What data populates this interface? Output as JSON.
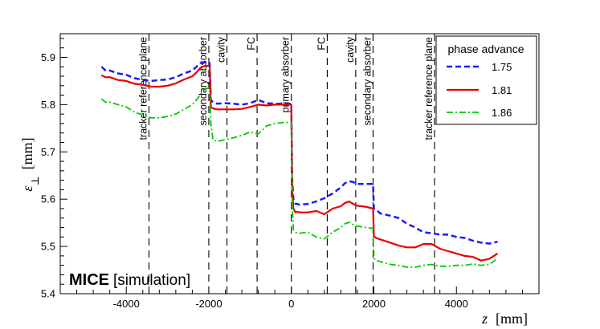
{
  "chart_data": {
    "type": "line",
    "xlabel_symbol": "z",
    "xlabel_unit": "[mm]",
    "ylabel_symbol": "ε",
    "ylabel_subscript": "⊥",
    "ylabel_unit": "[mm]",
    "xlim": [
      -5600,
      6000
    ],
    "ylim": [
      5.4,
      5.95
    ],
    "x_ticks": [
      -4000,
      -2000,
      0,
      2000,
      4000
    ],
    "x_tick_labels": [
      "-4000",
      "-2000",
      "0",
      "2000",
      "4000"
    ],
    "y_ticks": [
      5.4,
      5.5,
      5.6,
      5.7,
      5.8,
      5.9
    ],
    "y_tick_labels": [
      "5.4",
      "5.5",
      "5.6",
      "5.7",
      "5.8",
      "5.9"
    ],
    "watermark_bold": "MICE",
    "watermark_text": "[simulation]",
    "legend": {
      "title": "phase advance",
      "placement": "top-right"
    },
    "regions": [
      {
        "z": -3450,
        "label": "tracker reference plane"
      },
      {
        "z": -2000,
        "label": "secondary absorber"
      },
      {
        "z": -1560,
        "label": "cavity"
      },
      {
        "z": -830,
        "label": "FC"
      },
      {
        "z": 0,
        "label": "primary absorber"
      },
      {
        "z": 870,
        "label": "FC"
      },
      {
        "z": 1560,
        "label": "cavity"
      },
      {
        "z": 1980,
        "label": "secondary absorber"
      },
      {
        "z": 3470,
        "label": "tracker reference plane"
      }
    ],
    "series": [
      {
        "name": "1.75",
        "color": "#1a1aff",
        "style": "dashed",
        "x": [
          -4600,
          -4500,
          -4400,
          -4200,
          -4000,
          -3800,
          -3600,
          -3400,
          -3200,
          -3000,
          -2800,
          -2600,
          -2400,
          -2300,
          -2200,
          -2100,
          -2000,
          -1980,
          -1950,
          -1900,
          -1800,
          -1600,
          -1400,
          -1200,
          -1000,
          -800,
          -600,
          -400,
          -200,
          0,
          20,
          50,
          100,
          150,
          200,
          400,
          600,
          800,
          1000,
          1200,
          1300,
          1400,
          1500,
          1600,
          1800,
          1980,
          2000,
          2050,
          2150,
          2400,
          2600,
          2800,
          3000,
          3200,
          3400,
          3600,
          3800,
          4000,
          4200,
          4400,
          4600,
          4800,
          5000
        ],
        "y": [
          5.88,
          5.872,
          5.872,
          5.866,
          5.863,
          5.856,
          5.852,
          5.85,
          5.852,
          5.853,
          5.858,
          5.866,
          5.872,
          5.88,
          5.888,
          5.889,
          5.889,
          5.887,
          5.81,
          5.805,
          5.802,
          5.803,
          5.802,
          5.8,
          5.803,
          5.81,
          5.803,
          5.802,
          5.802,
          5.802,
          5.64,
          5.6,
          5.59,
          5.59,
          5.588,
          5.59,
          5.595,
          5.602,
          5.612,
          5.625,
          5.634,
          5.638,
          5.636,
          5.632,
          5.632,
          5.632,
          5.58,
          5.578,
          5.57,
          5.565,
          5.56,
          5.548,
          5.54,
          5.53,
          5.528,
          5.525,
          5.525,
          5.52,
          5.518,
          5.512,
          5.508,
          5.506,
          5.51
        ]
      },
      {
        "name": "1.81",
        "color": "#e80000",
        "style": "solid",
        "x": [
          -4600,
          -4500,
          -4400,
          -4200,
          -4000,
          -3800,
          -3600,
          -3400,
          -3200,
          -3000,
          -2800,
          -2600,
          -2400,
          -2300,
          -2200,
          -2100,
          -2000,
          -1980,
          -1950,
          -1900,
          -1800,
          -1600,
          -1400,
          -1200,
          -1000,
          -800,
          -600,
          -400,
          -200,
          0,
          20,
          50,
          100,
          150,
          200,
          400,
          600,
          800,
          1000,
          1200,
          1300,
          1400,
          1500,
          1600,
          1800,
          1980,
          2000,
          2050,
          2150,
          2400,
          2600,
          2800,
          3000,
          3200,
          3400,
          3600,
          3800,
          4000,
          4200,
          4400,
          4600,
          4800,
          5000
        ],
        "y": [
          5.862,
          5.858,
          5.858,
          5.852,
          5.85,
          5.844,
          5.842,
          5.838,
          5.838,
          5.84,
          5.845,
          5.853,
          5.86,
          5.868,
          5.878,
          5.882,
          5.882,
          5.88,
          5.795,
          5.792,
          5.79,
          5.79,
          5.79,
          5.791,
          5.795,
          5.8,
          5.798,
          5.8,
          5.8,
          5.8,
          5.62,
          5.58,
          5.572,
          5.573,
          5.572,
          5.572,
          5.575,
          5.568,
          5.58,
          5.585,
          5.592,
          5.595,
          5.59,
          5.586,
          5.584,
          5.58,
          5.522,
          5.518,
          5.515,
          5.508,
          5.502,
          5.498,
          5.498,
          5.505,
          5.505,
          5.495,
          5.49,
          5.485,
          5.48,
          5.478,
          5.47,
          5.474,
          5.485
        ]
      },
      {
        "name": "1.86",
        "color": "#00cc00",
        "style": "dashdot",
        "x": [
          -4600,
          -4500,
          -4400,
          -4200,
          -4000,
          -3800,
          -3600,
          -3400,
          -3200,
          -3000,
          -2800,
          -2600,
          -2400,
          -2300,
          -2200,
          -2100,
          -2000,
          -1980,
          -1950,
          -1900,
          -1800,
          -1600,
          -1400,
          -1200,
          -1000,
          -800,
          -600,
          -400,
          -200,
          0,
          20,
          50,
          100,
          150,
          200,
          400,
          600,
          800,
          1000,
          1200,
          1300,
          1400,
          1500,
          1600,
          1800,
          1980,
          2000,
          2050,
          2150,
          2400,
          2600,
          2800,
          3000,
          3200,
          3400,
          3600,
          3800,
          4000,
          4200,
          4400,
          4600,
          4800,
          5000
        ],
        "y": [
          5.812,
          5.805,
          5.805,
          5.8,
          5.795,
          5.784,
          5.778,
          5.772,
          5.772,
          5.775,
          5.78,
          5.79,
          5.8,
          5.81,
          5.822,
          5.832,
          5.835,
          5.83,
          5.76,
          5.726,
          5.722,
          5.726,
          5.73,
          5.735,
          5.742,
          5.738,
          5.755,
          5.76,
          5.762,
          5.762,
          5.59,
          5.535,
          5.53,
          5.528,
          5.528,
          5.53,
          5.52,
          5.516,
          5.53,
          5.54,
          5.548,
          5.551,
          5.546,
          5.543,
          5.54,
          5.538,
          5.475,
          5.47,
          5.468,
          5.462,
          5.46,
          5.456,
          5.456,
          5.46,
          5.462,
          5.458,
          5.458,
          5.46,
          5.46,
          5.463,
          5.46,
          5.462,
          5.475
        ]
      }
    ]
  }
}
